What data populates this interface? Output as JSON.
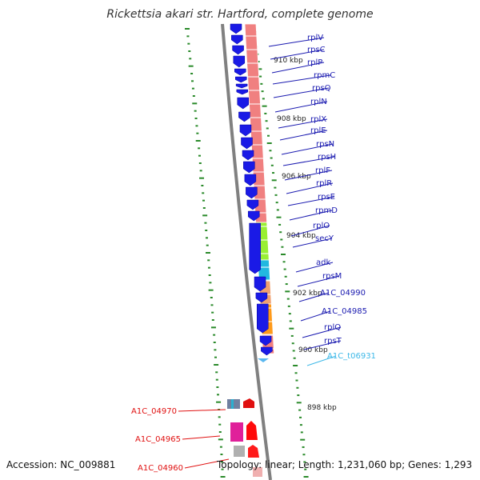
{
  "title": "Rickettsia akari str. Hartford, complete genome",
  "accession": "Accession: NC_009881",
  "topology": "Topology: linear; Length: 1,231,060 bp; Genes: 1,293",
  "colors": {
    "gene_blue": "#1a1ae6",
    "cds_track": "#f08080",
    "ruler": "#2a8a2a",
    "backbone": "#808080",
    "label_blue": "#1a1ab0",
    "label_red": "#e01010",
    "label_cyan": "#3cb8e8"
  },
  "ruler_ticks": [
    "910 kbp",
    "908 kbp",
    "906 kbp",
    "904 kbp",
    "902 kbp",
    "900 kbp",
    "898 kbp"
  ],
  "gene_labels": [
    {
      "name": "rplV",
      "color": "blue"
    },
    {
      "name": "rpsC",
      "color": "blue"
    },
    {
      "name": "rplP",
      "color": "blue"
    },
    {
      "name": "rpmC",
      "color": "blue"
    },
    {
      "name": "rpsQ",
      "color": "blue"
    },
    {
      "name": "rplN",
      "color": "blue"
    },
    {
      "name": "rplX",
      "color": "blue"
    },
    {
      "name": "rplE",
      "color": "blue"
    },
    {
      "name": "rpsN",
      "color": "blue"
    },
    {
      "name": "rpsH",
      "color": "blue"
    },
    {
      "name": "rplF",
      "color": "blue"
    },
    {
      "name": "rplR",
      "color": "blue"
    },
    {
      "name": "rpsE",
      "color": "blue"
    },
    {
      "name": "rpmD",
      "color": "blue"
    },
    {
      "name": "rplO",
      "color": "blue"
    },
    {
      "name": "secY",
      "color": "blue"
    },
    {
      "name": "adk",
      "color": "blue"
    },
    {
      "name": "rpsM",
      "color": "blue"
    },
    {
      "name": "A1C_04990",
      "color": "blue"
    },
    {
      "name": "A1C_04985",
      "color": "blue"
    },
    {
      "name": "rplQ",
      "color": "blue"
    },
    {
      "name": "rpsT",
      "color": "blue"
    },
    {
      "name": "A1C_t06931",
      "color": "cyan"
    }
  ],
  "left_labels": [
    {
      "name": "A1C_04970",
      "color": "red"
    },
    {
      "name": "A1C_04965",
      "color": "red"
    },
    {
      "name": "A1C_04960",
      "color": "red"
    }
  ]
}
